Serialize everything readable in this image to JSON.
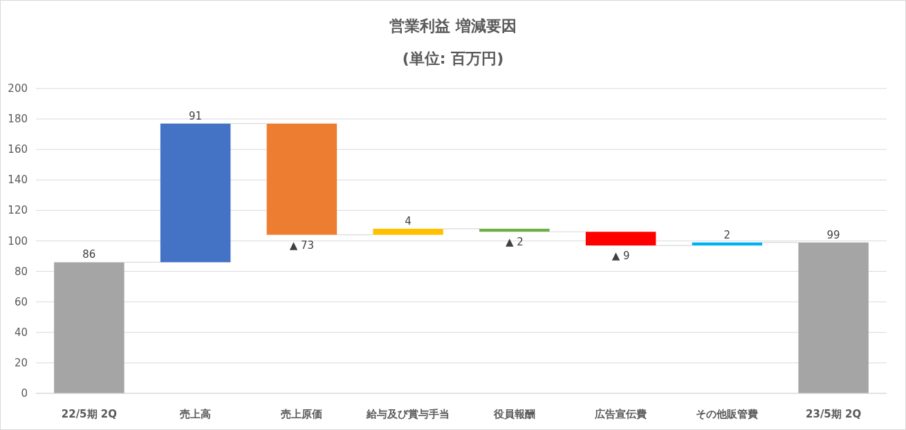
{
  "chart_data": {
    "type": "bar",
    "title": "営業利益 増減要因",
    "subtitle": "(単位: 百万円)",
    "categories": [
      "22/5期 2Q",
      "売上高",
      "売上原価",
      "給与及び賞与手当",
      "役員報酬",
      "広告宣伝費",
      "その他販管費",
      "23/5期 2Q"
    ],
    "base": [
      0,
      86,
      177,
      104,
      108,
      106,
      97,
      0
    ],
    "values": [
      86,
      91,
      -73,
      4,
      -2,
      -9,
      2,
      99
    ],
    "colors": [
      "#a5a5a5",
      "#4472c4",
      "#ed7d31",
      "#ffc000",
      "#70ad47",
      "#ff0000",
      "#00b0f0",
      "#a5a5a5"
    ],
    "value_labels": [
      "86",
      "91",
      "▲ 73",
      "4",
      "▲ 2",
      "▲ 9",
      "2",
      "99"
    ],
    "ylim": [
      0,
      200
    ],
    "yticks": [
      0,
      20,
      40,
      60,
      80,
      100,
      120,
      140,
      160,
      180,
      200
    ],
    "grid": "y"
  }
}
